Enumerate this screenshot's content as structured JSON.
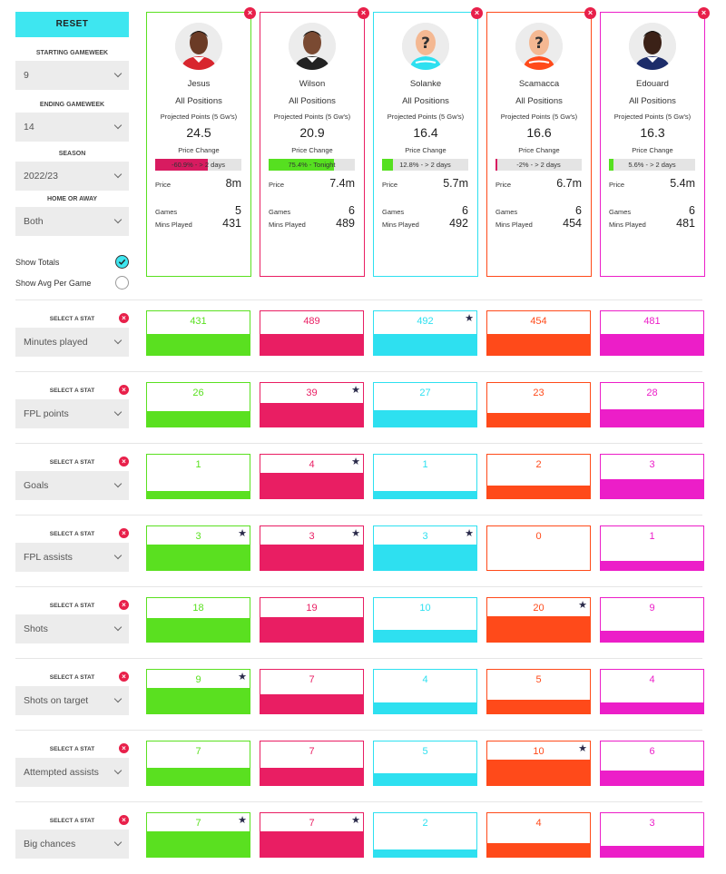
{
  "sidebar": {
    "reset_label": "RESET",
    "filters": [
      {
        "label": "STARTING GAMEWEEK",
        "value": "9"
      },
      {
        "label": "ENDING GAMEWEEK",
        "value": "14"
      },
      {
        "label": "SEASON",
        "value": "2022/23"
      },
      {
        "label": "HOME OR AWAY",
        "value": "Both"
      }
    ],
    "toggles": [
      {
        "label": "Show Totals",
        "checked": true
      },
      {
        "label": "Show Avg Per Game",
        "checked": false
      }
    ]
  },
  "labels": {
    "position": "All Positions",
    "projected": "Projected Points (5 Gw's)",
    "price_change": "Price Change",
    "price": "Price",
    "games": "Games",
    "mins": "Mins Played",
    "select_stat": "SELECT A STAT",
    "remove_icon": "×",
    "star_icon": "★"
  },
  "players": [
    {
      "name": "Jesus",
      "color": "#5ae020",
      "avatar": "photo-dark",
      "price_change_pct": -60.9,
      "price_change_text": "-60.9% - > 2 days",
      "projected": "24.5",
      "price": "8m",
      "games": "5",
      "mins": "431"
    },
    {
      "name": "Wilson",
      "color": "#e91e63",
      "avatar": "photo-light",
      "price_change_pct": 75.4,
      "price_change_text": "75.4% - Tonight",
      "projected": "20.9",
      "price": "7.4m",
      "games": "6",
      "mins": "489"
    },
    {
      "name": "Solanke",
      "color": "#2ee0f0",
      "avatar": "placeholder",
      "price_change_pct": 12.8,
      "price_change_text": "12.8% - > 2 days",
      "projected": "16.4",
      "price": "5.7m",
      "games": "6",
      "mins": "492"
    },
    {
      "name": "Scamacca",
      "color": "#ff4a1a",
      "avatar": "placeholder",
      "price_change_pct": -2,
      "price_change_text": "-2% - > 2 days",
      "projected": "16.6",
      "price": "6.7m",
      "games": "6",
      "mins": "454"
    },
    {
      "name": "Edouard",
      "color": "#ec1ec8",
      "avatar": "photo-black",
      "price_change_pct": 5.6,
      "price_change_text": "5.6% - > 2 days",
      "projected": "16.3",
      "price": "5.4m",
      "games": "6",
      "mins": "481"
    }
  ],
  "stats": [
    {
      "name": "Minutes played",
      "values": [
        "431",
        "489",
        "492",
        "454",
        "481"
      ],
      "fill_ratio": [
        0.48,
        0.48,
        0.48,
        0.48,
        0.48
      ],
      "best": 2
    },
    {
      "name": "FPL points",
      "values": [
        "26",
        "39",
        "27",
        "23",
        "28"
      ],
      "fill_ratio": [
        0.36,
        0.54,
        0.38,
        0.32,
        0.4
      ],
      "best": 1
    },
    {
      "name": "Goals",
      "values": [
        "1",
        "4",
        "1",
        "2",
        "3"
      ],
      "fill_ratio": [
        0.16,
        0.58,
        0.16,
        0.3,
        0.44
      ],
      "best": 1
    },
    {
      "name": "FPL assists",
      "values": [
        "3",
        "3",
        "3",
        "0",
        "1"
      ],
      "fill_ratio": [
        0.58,
        0.58,
        0.58,
        0,
        0.2
      ],
      "best": [
        0,
        1,
        2
      ]
    },
    {
      "name": "Shots",
      "values": [
        "18",
        "19",
        "10",
        "20",
        "9"
      ],
      "fill_ratio": [
        0.54,
        0.56,
        0.28,
        0.58,
        0.26
      ],
      "best": 3
    },
    {
      "name": "Shots on target",
      "values": [
        "9",
        "7",
        "4",
        "5",
        "4"
      ],
      "fill_ratio": [
        0.58,
        0.44,
        0.26,
        0.32,
        0.26
      ],
      "best": 0
    },
    {
      "name": "Attempted assists",
      "values": [
        "7",
        "7",
        "5",
        "10",
        "6"
      ],
      "fill_ratio": [
        0.4,
        0.4,
        0.28,
        0.58,
        0.34
      ],
      "best": 3
    },
    {
      "name": "Big chances",
      "values": [
        "7",
        "7",
        "2",
        "4",
        "3"
      ],
      "fill_ratio": [
        0.58,
        0.58,
        0.16,
        0.32,
        0.26
      ],
      "best": [
        0,
        1
      ]
    }
  ]
}
